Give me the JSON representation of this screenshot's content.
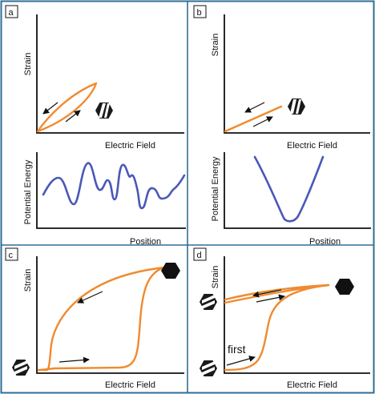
{
  "panels": {
    "a": {
      "letter": "a",
      "ylabel": "Strain",
      "xlabel": "Electric Field",
      "energy_ylabel": "Potential Energy",
      "energy_xlabel": "Position"
    },
    "b": {
      "letter": "b",
      "ylabel": "Strain",
      "xlabel": "Electric Field",
      "energy_ylabel": "Potential Energy",
      "energy_xlabel": "Position"
    },
    "c": {
      "letter": "c",
      "ylabel": "Strain",
      "xlabel": "Electric Field"
    },
    "d": {
      "letter": "d",
      "ylabel": "Strain",
      "xlabel": "Electric Field",
      "annotation": "first"
    }
  },
  "colors": {
    "border": "#2f6f95",
    "strain_curve": "#f08a2e",
    "energy_curve": "#4a58b8",
    "ink": "#111111"
  },
  "icons": [
    "striped-hexagon-icon",
    "solid-hexagon-icon",
    "direction-arrow-icon"
  ]
}
